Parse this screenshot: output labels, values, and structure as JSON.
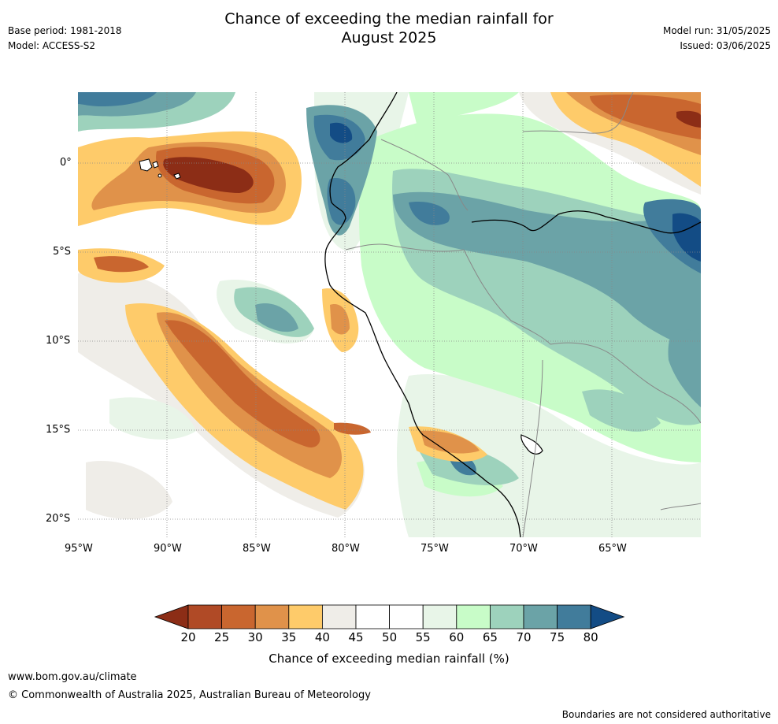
{
  "header": {
    "base_period": "Base period: 1981-2018",
    "model": "Model: ACCESS-S2",
    "title_line1": "Chance of exceeding the median rainfall for",
    "title_line2": "August 2025",
    "model_run": "Model run: 31/05/2025",
    "issued": "Issued: 03/06/2025"
  },
  "map": {
    "lat_labels": [
      "0°",
      "5°S",
      "10°S",
      "15°S",
      "20°S"
    ],
    "lon_labels": [
      "95°W",
      "90°W",
      "85°W",
      "80°W",
      "75°W",
      "70°W",
      "65°W"
    ],
    "lon_range": [
      -95,
      -60
    ],
    "lat_range": [
      4,
      -21
    ]
  },
  "colorbar": {
    "ticks": [
      "20",
      "25",
      "30",
      "35",
      "40",
      "45",
      "50",
      "55",
      "60",
      "65",
      "70",
      "75",
      "80"
    ],
    "colors": [
      "#8c2d16",
      "#b04a26",
      "#c9662f",
      "#e0924a",
      "#fecb6a",
      "#efede8",
      "#ffffff",
      "#ffffff",
      "#e8f5e8",
      "#c8fcc8",
      "#9dd2bc",
      "#6ba3a7",
      "#417c9b",
      "#134c85"
    ],
    "label": "Chance of exceeding median rainfall (%)"
  },
  "footer": {
    "url": "www.bom.gov.au/climate",
    "copyright": "© Commonwealth of Australia 2025, Australian Bureau of Meteorology",
    "disclaimer": "Boundaries are not considered authoritative"
  }
}
